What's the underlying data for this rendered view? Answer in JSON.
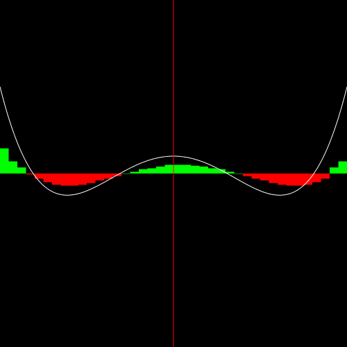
{
  "chart_data": {
    "type": "bar",
    "title": "",
    "xlabel": "",
    "ylabel": "",
    "xlim": [
      -2,
      2
    ],
    "ylim": [
      -2,
      2
    ],
    "grid": false,
    "curve": {
      "kind": "polynomial",
      "coefficients": [
        0.2,
        0,
        -0.6,
        0,
        0.2
      ],
      "color": "#ffffff"
    },
    "bars": {
      "x_start": -2.0,
      "width": 0.1,
      "positive_color": "#00ff00",
      "negative_color": "#ff0000",
      "values": [
        0.29,
        0.14,
        0.07,
        -0.01,
        -0.06,
        -0.1,
        -0.13,
        -0.14,
        -0.14,
        -0.13,
        -0.11,
        -0.08,
        -0.06,
        -0.03,
        0.0,
        0.02,
        0.05,
        0.06,
        0.08,
        0.1,
        0.1,
        0.1,
        0.09,
        0.08,
        0.06,
        0.05,
        0.02,
        0.0,
        -0.03,
        -0.06,
        -0.08,
        -0.11,
        -0.13,
        -0.14,
        -0.14,
        -0.13,
        -0.1,
        -0.06,
        0.07,
        0.14
      ]
    },
    "y_axis_color": "#ff0000"
  }
}
